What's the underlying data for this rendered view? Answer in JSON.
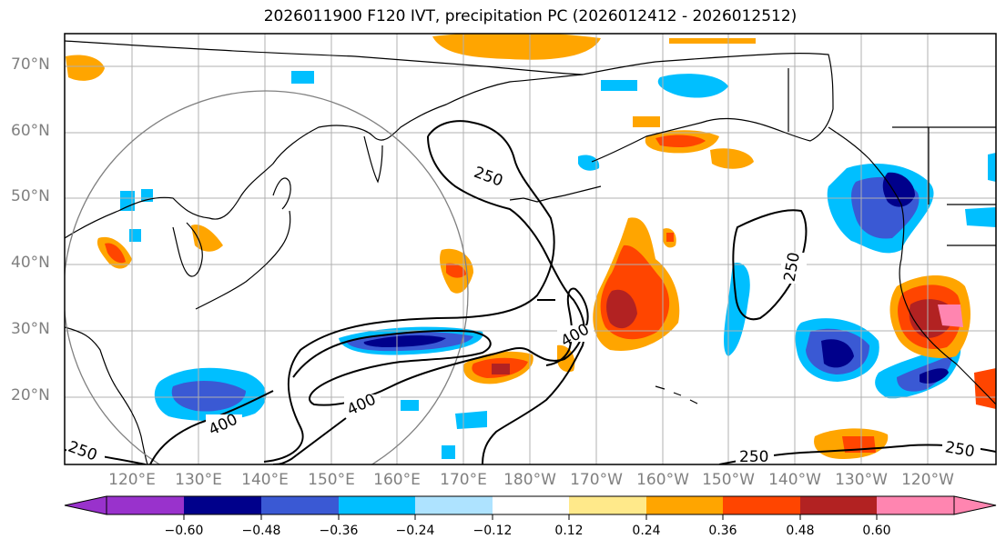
{
  "title": "2026011900 F120 IVT, precipitation PC (2026012412 - 2026012512)",
  "map": {
    "lat_labels": [
      "70°N",
      "60°N",
      "50°N",
      "40°N",
      "30°N",
      "20°N"
    ],
    "lon_labels": [
      "120°E",
      "130°E",
      "140°E",
      "150°E",
      "160°E",
      "170°E",
      "180°W",
      "170°W",
      "160°W",
      "150°W",
      "140°W",
      "130°W",
      "120°W"
    ],
    "contour_labels": [
      "250",
      "250",
      "250",
      "250",
      "250",
      "400",
      "400",
      "400"
    ],
    "colors": {
      "coastline": "#000000",
      "gridline": "#b0b0b0",
      "ivt_contour": "#000000",
      "circle": "#808080"
    }
  },
  "colorbar": {
    "bins": [
      {
        "min": null,
        "max": -0.6,
        "color": "#9932cc"
      },
      {
        "min": -0.6,
        "max": -0.48,
        "color": "#00008b"
      },
      {
        "min": -0.48,
        "max": -0.36,
        "color": "#3a59d4"
      },
      {
        "min": -0.36,
        "max": -0.24,
        "color": "#00bfff"
      },
      {
        "min": -0.24,
        "max": -0.12,
        "color": "#aee3ff"
      },
      {
        "min": -0.12,
        "max": 0.12,
        "color": "#ffffff"
      },
      {
        "min": 0.12,
        "max": 0.24,
        "color": "#ffe98a"
      },
      {
        "min": 0.24,
        "max": 0.36,
        "color": "#ffa500"
      },
      {
        "min": 0.36,
        "max": 0.48,
        "color": "#ff4500"
      },
      {
        "min": 0.48,
        "max": 0.6,
        "color": "#b22222"
      },
      {
        "min": 0.6,
        "max": null,
        "color": "#ff85b0"
      }
    ],
    "tick_labels": [
      "−0.60",
      "−0.48",
      "−0.36",
      "−0.24",
      "−0.12",
      "0.12",
      "0.24",
      "0.36",
      "0.48",
      "0.60"
    ]
  }
}
